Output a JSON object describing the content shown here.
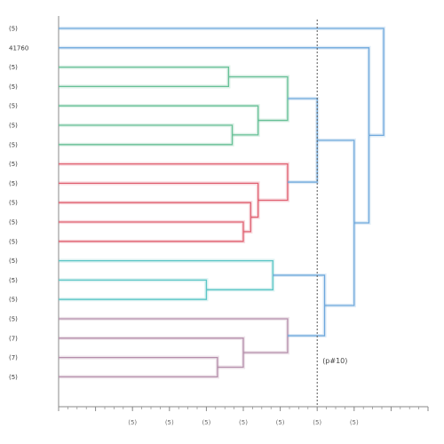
{
  "chart_data": {
    "type": "dendrogram",
    "orientation": "left-to-right",
    "leaves": [
      "(5)",
      "41760",
      "(5)",
      "(5)",
      "(5)",
      "(5)",
      "(5)",
      "(5)",
      "(5)",
      "(5)",
      "(5)",
      "(5)",
      "(5)",
      "(5)",
      "(5)",
      "(5)",
      "(7)",
      "(7)",
      "(5)"
    ],
    "x_range": [
      0,
      50
    ],
    "x_ticks": [
      0,
      5,
      10,
      15,
      20,
      25,
      30,
      35,
      40,
      45,
      50
    ],
    "x_tick_labels": [
      "",
      "",
      "(5)",
      "(5)",
      "(5)",
      "(5)",
      "(5)",
      "(5)",
      "(5)",
      "",
      ""
    ],
    "cut_height": 35,
    "cut_label": "(p#10)",
    "colors": {
      "axis": "#8a8a8a",
      "cut": "#555555",
      "root": "#6fa8dc",
      "green": "#67c096",
      "red": "#e06070",
      "teal": "#5cc6c6",
      "purple": "#b48eaa"
    },
    "merges": [
      {
        "a": 2,
        "b": 3,
        "h": 23,
        "color": "green"
      },
      {
        "a": 5,
        "b": 6,
        "h": 23.5,
        "color": "green"
      },
      {
        "a": 4,
        "b": "m1",
        "h": 27,
        "color": "green"
      },
      {
        "a": "m0",
        "b": "m2",
        "h": 31,
        "color": "green"
      },
      {
        "a": 10,
        "b": 11,
        "h": 25,
        "color": "red"
      },
      {
        "a": 9,
        "b": "m4",
        "h": 26,
        "color": "red"
      },
      {
        "a": 8,
        "b": "m5",
        "h": 27,
        "color": "red"
      },
      {
        "a": 7,
        "b": "m6",
        "h": 31,
        "color": "red"
      },
      {
        "a": 13,
        "b": 14,
        "h": 20,
        "color": "teal"
      },
      {
        "a": 12,
        "b": "m8",
        "h": 29,
        "color": "teal"
      },
      {
        "a": 17,
        "b": 18,
        "h": 21.5,
        "color": "purple"
      },
      {
        "a": 16,
        "b": "m10",
        "h": 25,
        "color": "purple"
      },
      {
        "a": 15,
        "b": "m11",
        "h": 31,
        "color": "purple"
      },
      {
        "a": "m3",
        "b": "m7",
        "h": 35,
        "color": "root"
      },
      {
        "a": "m9",
        "b": "m12",
        "h": 36,
        "color": "root"
      },
      {
        "a": "m13",
        "b": "m14",
        "h": 40,
        "color": "root"
      },
      {
        "a": 1,
        "b": "m15",
        "h": 42,
        "color": "root"
      },
      {
        "a": 0,
        "b": "m16",
        "h": 44,
        "color": "root"
      }
    ]
  }
}
